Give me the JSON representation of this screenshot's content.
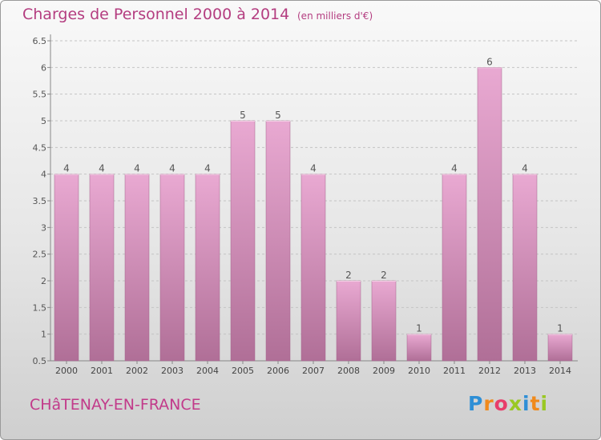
{
  "header": {
    "title": "Charges de Personnel 2000 à 2014",
    "subtitle": "(en milliers d'€)"
  },
  "footer": {
    "city": "CHâTENAY-EN-FRANCE",
    "logo": "Proxiti"
  },
  "colors": {
    "title": "#b43d80",
    "bar_top": "#e9a9d2",
    "bar_bottom": "#b06f97",
    "logo_letters": [
      "#2e8fd6",
      "#f08a1c",
      "#e83d6a",
      "#9ac823",
      "#2e8fd6",
      "#f08a1c",
      "#9ac823"
    ]
  },
  "chart_data": {
    "type": "bar",
    "title": "Charges de Personnel 2000 à 2014",
    "subtitle": "(en milliers d'€)",
    "categories": [
      "2000",
      "2001",
      "2002",
      "2003",
      "2004",
      "2005",
      "2006",
      "2007",
      "2008",
      "2009",
      "2010",
      "2011",
      "2012",
      "2013",
      "2014"
    ],
    "values": [
      4,
      4,
      4,
      4,
      4,
      5,
      5,
      4,
      2,
      2,
      1,
      4,
      6,
      4,
      1
    ],
    "data_labels": [
      "4",
      "4",
      "4",
      "4",
      "4",
      "5",
      "5",
      "4",
      "2",
      "2",
      "1",
      "4",
      "6",
      "4",
      "1"
    ],
    "yticks": [
      0.5,
      1,
      1.5,
      2,
      2.5,
      3,
      3.5,
      4,
      4.5,
      5,
      5.5,
      6,
      6.5
    ],
    "ytick_labels": [
      "0.5",
      "1",
      "1.5",
      "2",
      "2.5",
      "3",
      "3.5",
      "4",
      "4.5",
      "5",
      "5.5",
      "6",
      "6.5"
    ],
    "ylim": [
      0.5,
      6.5
    ],
    "xlabel": "",
    "ylabel": "",
    "grid": true
  }
}
